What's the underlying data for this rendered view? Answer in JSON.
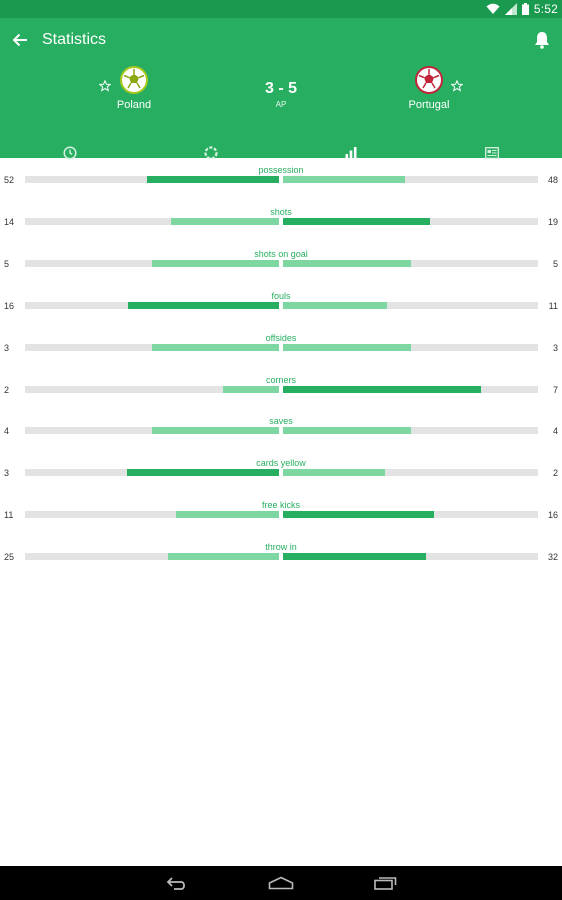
{
  "status_bar": {
    "time": "5:52"
  },
  "header": {
    "title": "Statistics"
  },
  "match": {
    "home": {
      "name": "Poland"
    },
    "away": {
      "name": "Portugal"
    },
    "score": "3 - 5",
    "score_note": "AP"
  },
  "tabs": [
    {
      "icon": "clock-icon",
      "active": false
    },
    {
      "icon": "lineup-icon",
      "active": false
    },
    {
      "icon": "bar-chart-icon",
      "active": true
    },
    {
      "icon": "news-icon",
      "active": false
    }
  ],
  "stats": [
    {
      "label": "possession",
      "home": 52,
      "away": 48
    },
    {
      "label": "shots",
      "home": 14,
      "away": 19
    },
    {
      "label": "shots on goal",
      "home": 5,
      "away": 5
    },
    {
      "label": "fouls",
      "home": 16,
      "away": 11
    },
    {
      "label": "offsides",
      "home": 3,
      "away": 3
    },
    {
      "label": "corners",
      "home": 2,
      "away": 7
    },
    {
      "label": "saves",
      "home": 4,
      "away": 4
    },
    {
      "label": "cards yellow",
      "home": 3,
      "away": 2
    },
    {
      "label": "free kicks",
      "home": 11,
      "away": 16
    },
    {
      "label": "throw in",
      "home": 25,
      "away": 32
    }
  ],
  "colors": {
    "primary": "#27ae60",
    "status_bar": "#1a9a4f",
    "bar_high": "#27ae60",
    "bar_low": "#7ed7a0",
    "bar_track": "#e3e3e3"
  }
}
